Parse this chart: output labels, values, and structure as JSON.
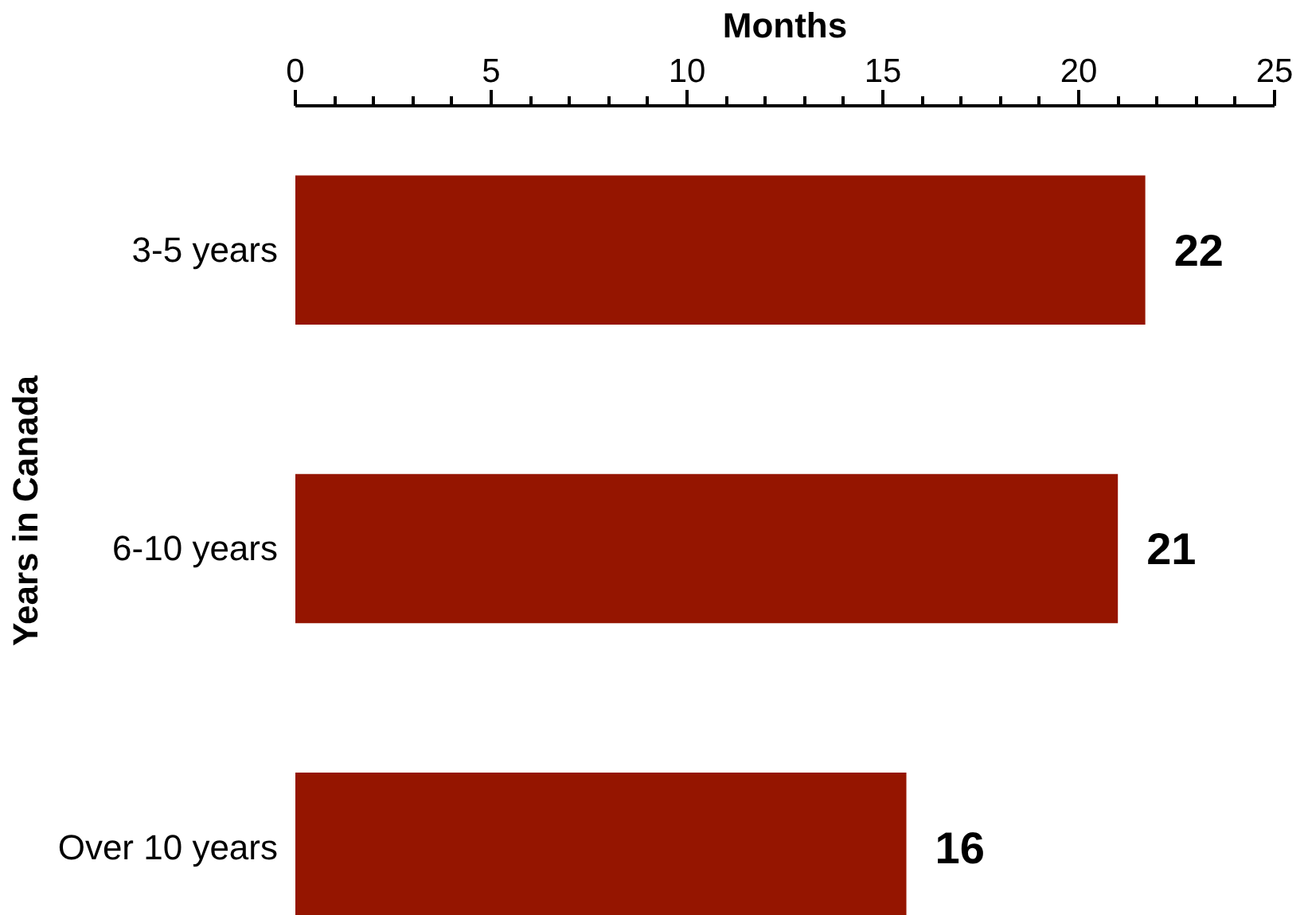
{
  "chart_data": {
    "type": "bar",
    "orientation": "horizontal",
    "xlabel": "Months",
    "ylabel": "Years in Canada",
    "categories": [
      "3-5 years",
      "6-10 years",
      "Over 10 years"
    ],
    "values": [
      21.7,
      21.0,
      15.6
    ],
    "value_labels": [
      "22",
      "21",
      "16"
    ],
    "color": "#951500",
    "xlim": [
      0,
      25
    ],
    "xticks": [
      0,
      {
        "value": 1,
        "label": null
      },
      {
        "value": 2,
        "label": null
      },
      {
        "value": 3,
        "label": null
      },
      {
        "value": 4,
        "label": null
      },
      5,
      {
        "value": 6,
        "label": null
      },
      {
        "value": 7,
        "label": null
      },
      {
        "value": 8,
        "label": null
      },
      {
        "value": 9,
        "label": null
      },
      10,
      {
        "value": 11,
        "label": null
      },
      {
        "value": 12,
        "label": null
      },
      {
        "value": 13,
        "label": null
      },
      {
        "value": 14,
        "label": null
      },
      15,
      {
        "value": 16,
        "label": null
      },
      {
        "value": 17,
        "label": null
      },
      {
        "value": 18,
        "label": null
      },
      {
        "value": 19,
        "label": null
      },
      20,
      {
        "value": 21,
        "label": null
      },
      {
        "value": 22,
        "label": null
      },
      {
        "value": 23,
        "label": null
      },
      {
        "value": 24,
        "label": null
      },
      25
    ],
    "grid": false
  }
}
